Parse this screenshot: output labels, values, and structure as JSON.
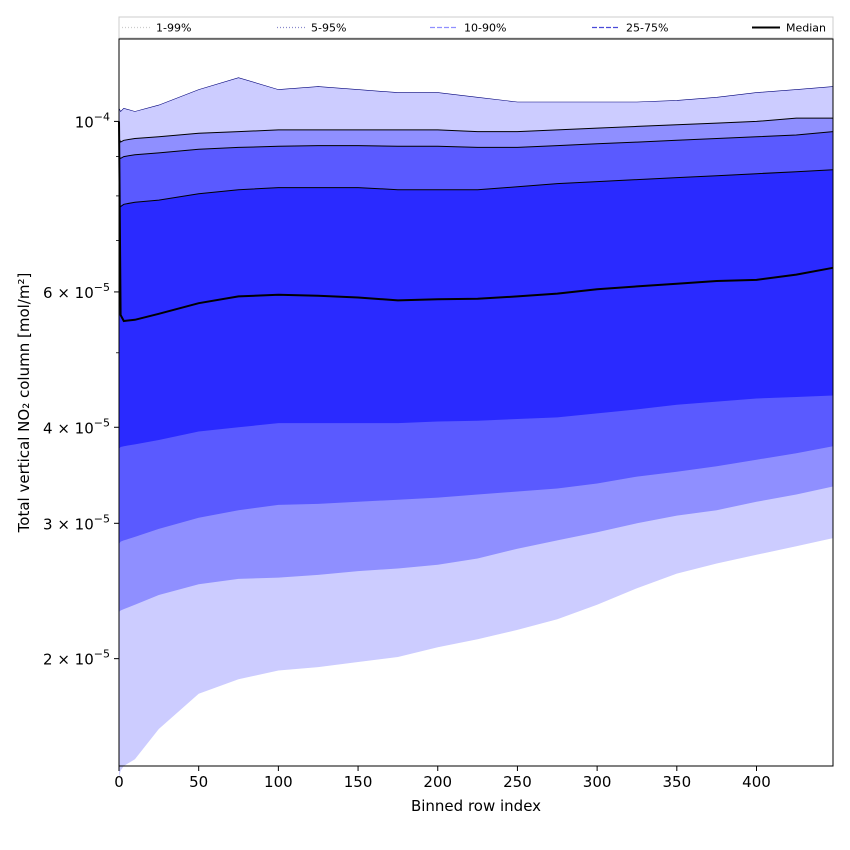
{
  "chart_data": {
    "type": "area",
    "xlabel": "Binned row index",
    "ylabel": "Total vertical NO₂ column [mol/m²]",
    "xlim": [
      0,
      448
    ],
    "ylim": [
      1.45e-05,
      0.000128
    ],
    "yscale": "log",
    "x_ticks": [
      0,
      50,
      100,
      150,
      200,
      250,
      300,
      350,
      400
    ],
    "y_ticks": [
      {
        "value": 2e-05,
        "mantissa": "2",
        "exponent": "−5"
      },
      {
        "value": 3e-05,
        "mantissa": "3",
        "exponent": "−5"
      },
      {
        "value": 4e-05,
        "mantissa": "4",
        "exponent": "−5"
      },
      {
        "value": 6e-05,
        "mantissa": "6",
        "exponent": "−5"
      },
      {
        "value": 0.0001,
        "mantissa": "10",
        "exponent": "−4"
      }
    ],
    "legend": {
      "position": "top",
      "entries": [
        {
          "label": "1-99%",
          "style": "dotted",
          "color": "#cccccc"
        },
        {
          "label": "5-95%",
          "style": "dotted",
          "color": "#8888cc"
        },
        {
          "label": "10-90%",
          "style": "dashed",
          "color": "#8f8fff"
        },
        {
          "label": "25-75%",
          "style": "dashed",
          "color": "#4a4ad8"
        },
        {
          "label": "Median",
          "style": "solid",
          "color": "#000000"
        }
      ]
    },
    "x": [
      0,
      1,
      3,
      10,
      25,
      50,
      75,
      100,
      125,
      150,
      175,
      200,
      225,
      250,
      275,
      300,
      325,
      350,
      375,
      400,
      425,
      448
    ],
    "bands": [
      {
        "name": "1-99%",
        "fill": "#ccccff",
        "lower": [
          1.4e-05,
          1.43e-05,
          1.45e-05,
          1.48e-05,
          1.62e-05,
          1.8e-05,
          1.88e-05,
          1.93e-05,
          1.95e-05,
          1.98e-05,
          2.01e-05,
          2.07e-05,
          2.12e-05,
          2.18e-05,
          2.25e-05,
          2.35e-05,
          2.47e-05,
          2.58e-05,
          2.66e-05,
          2.73e-05,
          2.8e-05,
          2.87e-05
        ],
        "upper": [
          0.000104,
          0.000103,
          0.000104,
          0.000103,
          0.000105,
          0.00011,
          0.000114,
          0.00011,
          0.000111,
          0.00011,
          0.000109,
          0.000109,
          0.0001075,
          0.000106,
          0.000106,
          0.000106,
          0.000106,
          0.0001065,
          0.0001075,
          0.000109,
          0.00011,
          0.000111
        ]
      },
      {
        "name": "5-95%",
        "fill": "#8f8fff",
        "lower": [
          2.3e-05,
          2.31e-05,
          2.32e-05,
          2.35e-05,
          2.42e-05,
          2.5e-05,
          2.54e-05,
          2.55e-05,
          2.57e-05,
          2.6e-05,
          2.62e-05,
          2.65e-05,
          2.7e-05,
          2.78e-05,
          2.85e-05,
          2.92e-05,
          3e-05,
          3.07e-05,
          3.12e-05,
          3.2e-05,
          3.27e-05,
          3.35e-05
        ],
        "upper": [
          9.5e-05,
          9.4e-05,
          9.45e-05,
          9.5e-05,
          9.55e-05,
          9.65e-05,
          9.7e-05,
          9.75e-05,
          9.75e-05,
          9.75e-05,
          9.75e-05,
          9.75e-05,
          9.7e-05,
          9.7e-05,
          9.75e-05,
          9.8e-05,
          9.85e-05,
          9.9e-05,
          9.95e-05,
          0.0001,
          0.000101,
          0.000101
        ]
      },
      {
        "name": "10-90%",
        "fill": "#5a5aff",
        "lower": [
          2.82e-05,
          2.84e-05,
          2.85e-05,
          2.88e-05,
          2.95e-05,
          3.05e-05,
          3.12e-05,
          3.17e-05,
          3.18e-05,
          3.2e-05,
          3.22e-05,
          3.24e-05,
          3.27e-05,
          3.3e-05,
          3.33e-05,
          3.38e-05,
          3.45e-05,
          3.5e-05,
          3.56e-05,
          3.63e-05,
          3.7e-05,
          3.78e-05
        ],
        "upper": [
          9e-05,
          8.95e-05,
          9e-05,
          9.05e-05,
          9.1e-05,
          9.2e-05,
          9.25e-05,
          9.28e-05,
          9.3e-05,
          9.3e-05,
          9.28e-05,
          9.28e-05,
          9.25e-05,
          9.25e-05,
          9.3e-05,
          9.35e-05,
          9.4e-05,
          9.45e-05,
          9.5e-05,
          9.55e-05,
          9.6e-05,
          9.7e-05
        ]
      },
      {
        "name": "25-75%",
        "fill": "#2a2aff",
        "lower": [
          3.75e-05,
          3.77e-05,
          3.78e-05,
          3.8e-05,
          3.85e-05,
          3.95e-05,
          4e-05,
          4.05e-05,
          4.05e-05,
          4.05e-05,
          4.05e-05,
          4.07e-05,
          4.08e-05,
          4.1e-05,
          4.12e-05,
          4.17e-05,
          4.22e-05,
          4.28e-05,
          4.32e-05,
          4.36e-05,
          4.38e-05,
          4.4e-05
        ],
        "upper": [
          7.8e-05,
          7.75e-05,
          7.8e-05,
          7.85e-05,
          7.9e-05,
          8.05e-05,
          8.15e-05,
          8.2e-05,
          8.2e-05,
          8.2e-05,
          8.15e-05,
          8.15e-05,
          8.15e-05,
          8.22e-05,
          8.3e-05,
          8.35e-05,
          8.4e-05,
          8.45e-05,
          8.5e-05,
          8.55e-05,
          8.6e-05,
          8.65e-05
        ]
      }
    ],
    "median": [
      0.0001,
      5.6e-05,
      5.5e-05,
      5.52e-05,
      5.62e-05,
      5.8e-05,
      5.92e-05,
      5.95e-05,
      5.93e-05,
      5.9e-05,
      5.85e-05,
      5.87e-05,
      5.88e-05,
      5.92e-05,
      5.97e-05,
      6.05e-05,
      6.1e-05,
      6.15e-05,
      6.2e-05,
      6.22e-05,
      6.32e-05,
      6.45e-05
    ]
  }
}
